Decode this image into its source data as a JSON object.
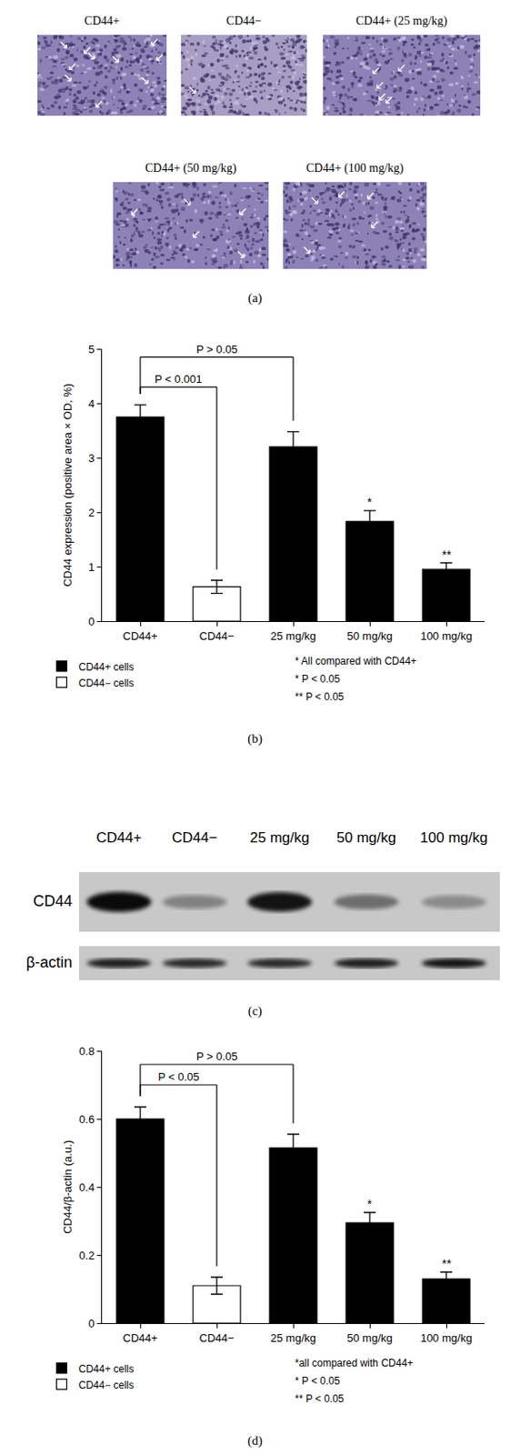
{
  "micrographs": {
    "panel_label": "(a)",
    "captions": [
      "CD44+",
      "CD44−",
      "CD44+ (25 mg/kg)",
      "CD44+ (50 mg/kg)",
      "CD44+ (100 mg/kg)"
    ]
  },
  "western_blot": {
    "panel_label": "(c)",
    "lanes": [
      "CD44+",
      "CD44−",
      "25 mg/kg",
      "50 mg/kg",
      "100 mg/kg"
    ],
    "rows": [
      {
        "label": "CD44",
        "density": [
          0.95,
          0.35,
          0.9,
          0.45,
          0.3
        ]
      },
      {
        "label": "β-actin",
        "density": [
          0.85,
          0.8,
          0.8,
          0.85,
          0.9
        ]
      }
    ]
  },
  "chart_data": [
    {
      "type": "bar",
      "panel_label": "(b)",
      "y_label": "CD44 expression (positive area × OD, %)",
      "categories": [
        "CD44+",
        "CD44−",
        "25 mg/kg",
        "50 mg/kg",
        "100 mg/kg"
      ],
      "series": [
        {
          "name": "CD44+ cells",
          "color": "#000000",
          "values": [
            3.75,
            null,
            3.2,
            1.83,
            0.95
          ],
          "error": [
            0.22,
            null,
            0.28,
            0.2,
            0.12
          ]
        },
        {
          "name": "CD44− cells",
          "color": "#ffffff",
          "values": [
            null,
            0.63,
            null,
            null,
            null
          ],
          "error": [
            null,
            0.12,
            null,
            null,
            null
          ]
        }
      ],
      "ylim": [
        0,
        5
      ],
      "yticks": [
        0,
        1,
        2,
        3,
        4,
        5
      ],
      "grid": false,
      "legend": "below",
      "brackets": [
        {
          "from": "CD44+",
          "to": "CD44−",
          "y": 4.3,
          "label": "P < 0.001"
        },
        {
          "from": "CD44+",
          "to": "25 mg/kg",
          "y": 4.85,
          "label": "P > 0.05"
        }
      ],
      "annotations": [
        {
          "category": "50 mg/kg",
          "text": "*"
        },
        {
          "category": "100 mg/kg",
          "text": "**"
        }
      ],
      "notes": [
        "* All compared with CD44+",
        "* P < 0.05",
        "** P < 0.05"
      ]
    },
    {
      "type": "bar",
      "panel_label": "(d)",
      "y_label": "CD44/β-actin (a.u.)",
      "categories": [
        "CD44+",
        "CD44−",
        "25 mg/kg",
        "50 mg/kg",
        "100 mg/kg"
      ],
      "series": [
        {
          "name": "CD44+ cells",
          "color": "#000000",
          "values": [
            0.6,
            null,
            0.515,
            0.295,
            0.13
          ],
          "error": [
            0.035,
            null,
            0.04,
            0.03,
            0.02
          ]
        },
        {
          "name": "CD44− cells",
          "color": "#ffffff",
          "values": [
            null,
            0.11,
            null,
            null,
            null
          ],
          "error": [
            null,
            0.025,
            null,
            null,
            null
          ]
        }
      ],
      "ylim": [
        0,
        0.8
      ],
      "yticks": [
        0,
        0.2,
        0.4,
        0.6,
        0.8
      ],
      "grid": false,
      "legend": "below",
      "brackets": [
        {
          "from": "CD44+",
          "to": "25 mg/kg",
          "y": 0.76,
          "label": "P > 0.05"
        },
        {
          "from": "CD44+",
          "to": "CD44−",
          "y": 0.7,
          "label": "P < 0.05"
        }
      ],
      "annotations": [
        {
          "category": "50 mg/kg",
          "text": "*"
        },
        {
          "category": "100 mg/kg",
          "text": "**"
        }
      ],
      "notes": [
        "*all compared with CD44+",
        "* P < 0.05",
        "** P < 0.05"
      ]
    }
  ]
}
